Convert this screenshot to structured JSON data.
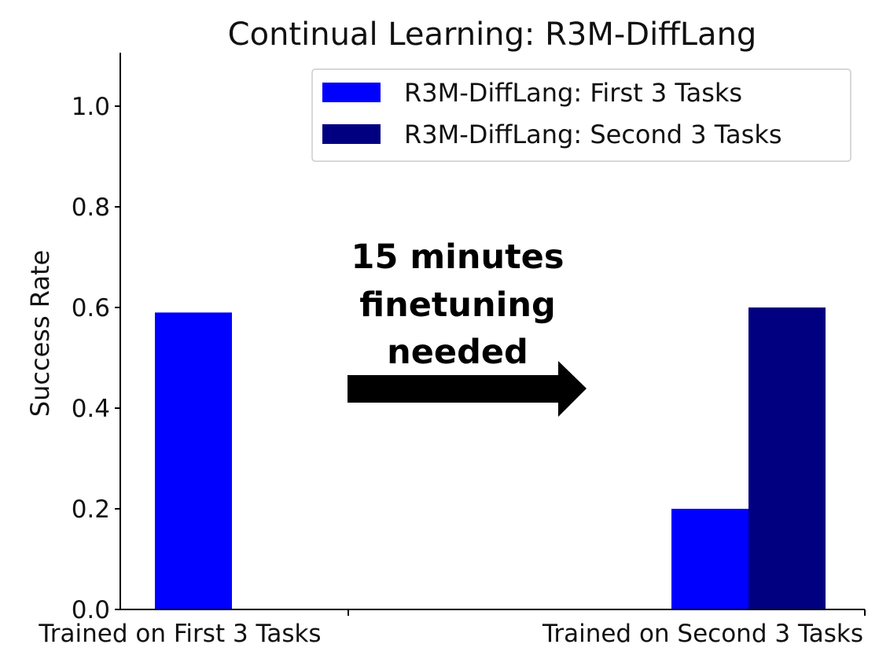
{
  "chart_data": {
    "type": "bar",
    "title": "Continual Learning: R3M-DiffLang",
    "ylabel": "Success Rate",
    "xlabel": "",
    "ylim": [
      0,
      1.1
    ],
    "yticks": [
      0.0,
      0.2,
      0.4,
      0.6,
      0.8,
      1.0
    ],
    "ytick_labels": [
      "0.0",
      "0.2",
      "0.4",
      "0.6",
      "0.8",
      "1.0"
    ],
    "categories": [
      "Trained on First 3 Tasks",
      "Trained on Second 3 Tasks"
    ],
    "series": [
      {
        "name": "R3M-DiffLang: First 3 Tasks",
        "values": [
          0.59,
          0.2
        ],
        "color": "#0000ff"
      },
      {
        "name": "R3M-DiffLang: Second 3 Tasks",
        "values": [
          0.0,
          0.6
        ],
        "color": "#000080"
      }
    ],
    "legend_position": "top-right",
    "grid": false,
    "annotation": {
      "lines": [
        "15 minutes",
        "finetuning",
        "needed"
      ],
      "arrow": "right"
    }
  }
}
